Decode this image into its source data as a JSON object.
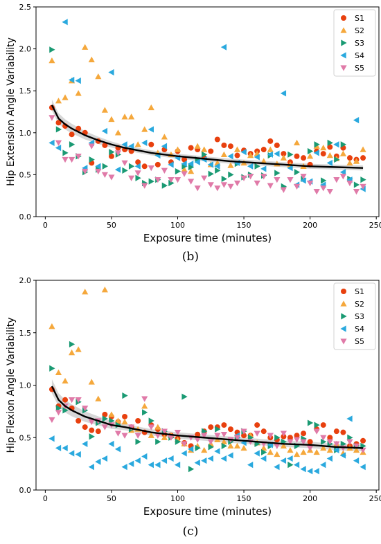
{
  "colors": {
    "S1": "#e8400e",
    "S2": "#f5a83c",
    "S3": "#1a9a73",
    "S4": "#2aa9de",
    "S5": "#e07aa8",
    "fit": "#000000",
    "band": "#bdbdbd"
  },
  "markers": {
    "S1": "circle",
    "S2": "triangle-up",
    "S3": "triangle-right",
    "S4": "triangle-left",
    "S5": "triangle-down"
  },
  "chart_data": [
    {
      "type": "scatter",
      "panel_label": "(b)",
      "title": "",
      "xlabel": "Exposure time (minutes)",
      "ylabel": "Hip Extension Angle Variability",
      "xlim": [
        -7,
        252
      ],
      "ylim": [
        0.0,
        2.5
      ],
      "xticks": [
        0,
        50,
        100,
        150,
        200,
        250
      ],
      "yticks": [
        0.0,
        0.5,
        1.0,
        1.5,
        2.0,
        2.5
      ],
      "ytick_labels": [
        "0.0",
        "0.5",
        "1.0",
        "1.5",
        "2.0",
        "2.5"
      ],
      "legend_position": "top-right",
      "grid": false,
      "x": [
        5,
        10,
        15,
        20,
        25,
        30,
        35,
        40,
        45,
        50,
        55,
        60,
        65,
        70,
        75,
        80,
        85,
        90,
        95,
        100,
        105,
        110,
        115,
        120,
        125,
        130,
        135,
        140,
        145,
        150,
        155,
        160,
        165,
        170,
        175,
        180,
        185,
        190,
        195,
        200,
        205,
        210,
        215,
        220,
        225,
        230,
        235,
        240
      ],
      "series": [
        {
          "name": "S1",
          "values": [
            1.3,
            1.12,
            1.08,
            0.98,
            1.05,
            1.0,
            0.64,
            0.9,
            0.85,
            0.72,
            0.82,
            0.8,
            0.78,
            0.65,
            0.6,
            0.86,
            0.62,
            0.8,
            0.65,
            0.78,
            0.68,
            0.82,
            0.8,
            0.7,
            0.78,
            0.92,
            0.85,
            0.84,
            0.73,
            0.79,
            0.75,
            0.78,
            0.8,
            0.9,
            0.85,
            0.75,
            0.65,
            0.72,
            0.7,
            0.62,
            0.78,
            0.75,
            0.83,
            0.72,
            0.82,
            0.7,
            0.68,
            0.7
          ]
        },
        {
          "name": "S2",
          "values": [
            1.86,
            1.38,
            1.42,
            1.62,
            1.47,
            2.02,
            1.87,
            1.67,
            1.27,
            1.16,
            1.0,
            1.19,
            1.19,
            0.86,
            1.04,
            1.3,
            0.76,
            0.95,
            0.74,
            0.8,
            0.56,
            0.54,
            0.84,
            0.8,
            0.62,
            0.64,
            0.74,
            0.61,
            0.8,
            0.64,
            0.73,
            0.75,
            0.66,
            0.8,
            0.63,
            0.7,
            0.62,
            0.88,
            0.6,
            0.72,
            0.84,
            0.82,
            0.73,
            0.69,
            0.75,
            0.64,
            0.66,
            0.8
          ]
        },
        {
          "name": "S3",
          "values": [
            1.99,
            1.04,
            0.76,
            0.86,
            0.72,
            0.53,
            0.68,
            0.56,
            0.6,
            0.77,
            0.74,
            0.55,
            0.6,
            0.46,
            0.4,
            0.42,
            0.44,
            0.37,
            0.4,
            0.54,
            0.6,
            0.59,
            0.68,
            0.74,
            0.51,
            0.55,
            0.45,
            0.5,
            0.63,
            0.47,
            0.5,
            0.6,
            0.49,
            0.73,
            0.52,
            0.36,
            0.74,
            0.53,
            0.45,
            0.78,
            0.86,
            0.43,
            0.88,
            0.68,
            0.86,
            0.45,
            0.38,
            0.44
          ]
        },
        {
          "name": "S4",
          "values": [
            0.88,
            0.82,
            2.32,
            1.63,
            1.62,
            0.58,
            0.88,
            0.6,
            1.02,
            1.72,
            0.56,
            0.86,
            0.84,
            0.6,
            0.88,
            1.04,
            0.73,
            0.84,
            0.62,
            0.7,
            0.63,
            0.63,
            0.65,
            0.68,
            0.62,
            0.6,
            2.02,
            0.72,
            0.64,
            0.77,
            0.6,
            0.71,
            0.57,
            0.74,
            0.75,
            1.47,
            0.58,
            0.38,
            0.43,
            0.42,
            0.76,
            0.38,
            0.64,
            0.86,
            0.53,
            0.44,
            1.15,
            0.33
          ]
        },
        {
          "name": "S5",
          "values": [
            1.18,
            0.88,
            0.68,
            0.68,
            0.72,
            0.54,
            0.84,
            0.54,
            0.5,
            0.47,
            0.76,
            0.64,
            0.46,
            0.52,
            0.37,
            0.58,
            0.44,
            0.55,
            0.44,
            0.44,
            0.51,
            0.42,
            0.34,
            0.46,
            0.38,
            0.34,
            0.38,
            0.36,
            0.4,
            0.46,
            0.48,
            0.4,
            0.48,
            0.37,
            0.44,
            0.32,
            0.44,
            0.36,
            0.48,
            0.4,
            0.3,
            0.34,
            0.3,
            0.44,
            0.48,
            0.4,
            0.3,
            0.36
          ]
        }
      ],
      "fit": {
        "x": [
          5,
          10,
          15,
          20,
          30,
          40,
          50,
          60,
          80,
          100,
          120,
          140,
          160,
          180,
          200,
          220,
          240
        ],
        "values": [
          1.33,
          1.17,
          1.1,
          1.05,
          0.97,
          0.91,
          0.86,
          0.82,
          0.76,
          0.72,
          0.69,
          0.66,
          0.64,
          0.62,
          0.6,
          0.59,
          0.58
        ]
      }
    },
    {
      "type": "scatter",
      "panel_label": "(c)",
      "title": "",
      "xlabel": "Exposure time (minutes)",
      "ylabel": "Hip Flexion Angle Variability",
      "xlim": [
        -7,
        252
      ],
      "ylim": [
        0.0,
        2.0
      ],
      "xticks": [
        0,
        50,
        100,
        150,
        200,
        250
      ],
      "yticks": [
        0.0,
        0.5,
        1.0,
        1.5,
        2.0
      ],
      "ytick_labels": [
        "0.0",
        "0.5",
        "1.0",
        "1.5",
        "2.0"
      ],
      "legend_position": "top-right",
      "grid": false,
      "x": [
        5,
        10,
        15,
        20,
        25,
        30,
        35,
        40,
        45,
        50,
        55,
        60,
        65,
        70,
        75,
        80,
        85,
        90,
        95,
        100,
        105,
        110,
        115,
        120,
        125,
        130,
        135,
        140,
        145,
        150,
        155,
        160,
        165,
        170,
        175,
        180,
        185,
        190,
        195,
        200,
        205,
        210,
        215,
        220,
        225,
        230,
        235,
        240
      ],
      "series": [
        {
          "name": "S1",
          "values": [
            0.96,
            0.8,
            0.86,
            0.78,
            0.66,
            0.6,
            0.57,
            0.56,
            0.72,
            0.7,
            0.65,
            0.7,
            0.6,
            0.66,
            0.55,
            0.62,
            0.58,
            0.53,
            0.52,
            0.49,
            0.45,
            0.42,
            0.53,
            0.56,
            0.6,
            0.6,
            0.62,
            0.58,
            0.55,
            0.52,
            0.52,
            0.62,
            0.56,
            0.5,
            0.48,
            0.51,
            0.5,
            0.52,
            0.54,
            0.46,
            0.58,
            0.62,
            0.5,
            0.56,
            0.55,
            0.42,
            0.44,
            0.47
          ]
        },
        {
          "name": "S2",
          "values": [
            1.56,
            1.12,
            1.04,
            1.31,
            1.34,
            1.89,
            1.03,
            0.87,
            1.91,
            0.72,
            0.66,
            0.65,
            0.57,
            0.58,
            0.8,
            0.52,
            0.6,
            0.5,
            0.52,
            0.48,
            0.44,
            0.38,
            0.42,
            0.38,
            0.44,
            0.48,
            0.46,
            0.42,
            0.42,
            0.4,
            0.52,
            0.45,
            0.4,
            0.36,
            0.34,
            0.42,
            0.38,
            0.34,
            0.36,
            0.38,
            0.36,
            0.4,
            0.38,
            0.44,
            0.35,
            0.4,
            0.38,
            0.36
          ]
        },
        {
          "name": "S3",
          "values": [
            1.16,
            0.78,
            0.76,
            1.39,
            0.84,
            0.76,
            0.51,
            0.64,
            0.68,
            0.66,
            0.62,
            0.9,
            0.58,
            0.46,
            0.74,
            0.66,
            0.46,
            0.56,
            0.5,
            0.46,
            0.89,
            0.2,
            0.4,
            0.56,
            0.41,
            0.58,
            0.42,
            0.46,
            0.5,
            0.56,
            0.5,
            0.44,
            0.36,
            0.42,
            0.5,
            0.46,
            0.24,
            0.42,
            0.49,
            0.64,
            0.62,
            0.46,
            0.44,
            0.38,
            0.44,
            0.5,
            0.42,
            0.42
          ]
        },
        {
          "name": "S4",
          "values": [
            0.49,
            0.4,
            0.4,
            0.35,
            0.34,
            0.44,
            0.22,
            0.27,
            0.3,
            0.44,
            0.39,
            0.22,
            0.25,
            0.28,
            0.32,
            0.24,
            0.24,
            0.28,
            0.3,
            0.24,
            0.35,
            0.39,
            0.26,
            0.28,
            0.3,
            0.37,
            0.3,
            0.33,
            0.52,
            0.45,
            0.24,
            0.35,
            0.3,
            0.43,
            0.22,
            0.28,
            0.3,
            0.24,
            0.2,
            0.18,
            0.18,
            0.24,
            0.3,
            0.38,
            0.33,
            0.68,
            0.28,
            0.22
          ]
        },
        {
          "name": "S5",
          "values": [
            0.67,
            0.74,
            0.8,
            0.86,
            0.86,
            0.78,
            0.65,
            0.66,
            0.6,
            0.62,
            0.54,
            0.52,
            0.6,
            0.52,
            0.87,
            0.6,
            0.52,
            0.56,
            0.5,
            0.55,
            0.44,
            0.5,
            0.48,
            0.52,
            0.46,
            0.52,
            0.53,
            0.48,
            0.5,
            0.56,
            0.46,
            0.54,
            0.44,
            0.52,
            0.42,
            0.54,
            0.46,
            0.48,
            0.46,
            0.4,
            0.56,
            0.5,
            0.46,
            0.44,
            0.4,
            0.46,
            0.42,
            0.38
          ]
        }
      ],
      "fit": {
        "x": [
          5,
          10,
          15,
          20,
          30,
          40,
          50,
          60,
          80,
          100,
          120,
          140,
          160,
          180,
          200,
          220,
          240
        ],
        "values": [
          0.99,
          0.86,
          0.8,
          0.76,
          0.7,
          0.66,
          0.62,
          0.6,
          0.55,
          0.52,
          0.5,
          0.48,
          0.46,
          0.44,
          0.43,
          0.41,
          0.4
        ]
      }
    }
  ]
}
